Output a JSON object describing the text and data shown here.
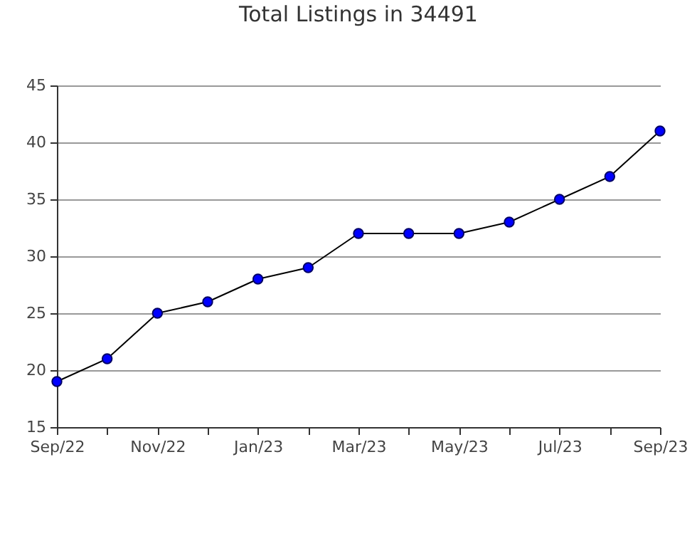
{
  "chart_data": {
    "type": "line",
    "title": "Total Listings in 34491",
    "categories": [
      "Sep/22",
      null,
      "Nov/22",
      null,
      "Jan/23",
      null,
      "Mar/23",
      null,
      "May/23",
      null,
      "Jul/23",
      null,
      "Sep/23"
    ],
    "series": [
      {
        "color": "#0000ff",
        "values": [
          19,
          21,
          25,
          26,
          28,
          29,
          32,
          32,
          32,
          33,
          35,
          37,
          41
        ]
      }
    ],
    "ylim": [
      15,
      45
    ],
    "yticks": [
      15,
      20,
      25,
      30,
      35,
      40,
      45
    ],
    "grid": "y",
    "marker": "circle",
    "line_style": "solid",
    "legend": false
  }
}
